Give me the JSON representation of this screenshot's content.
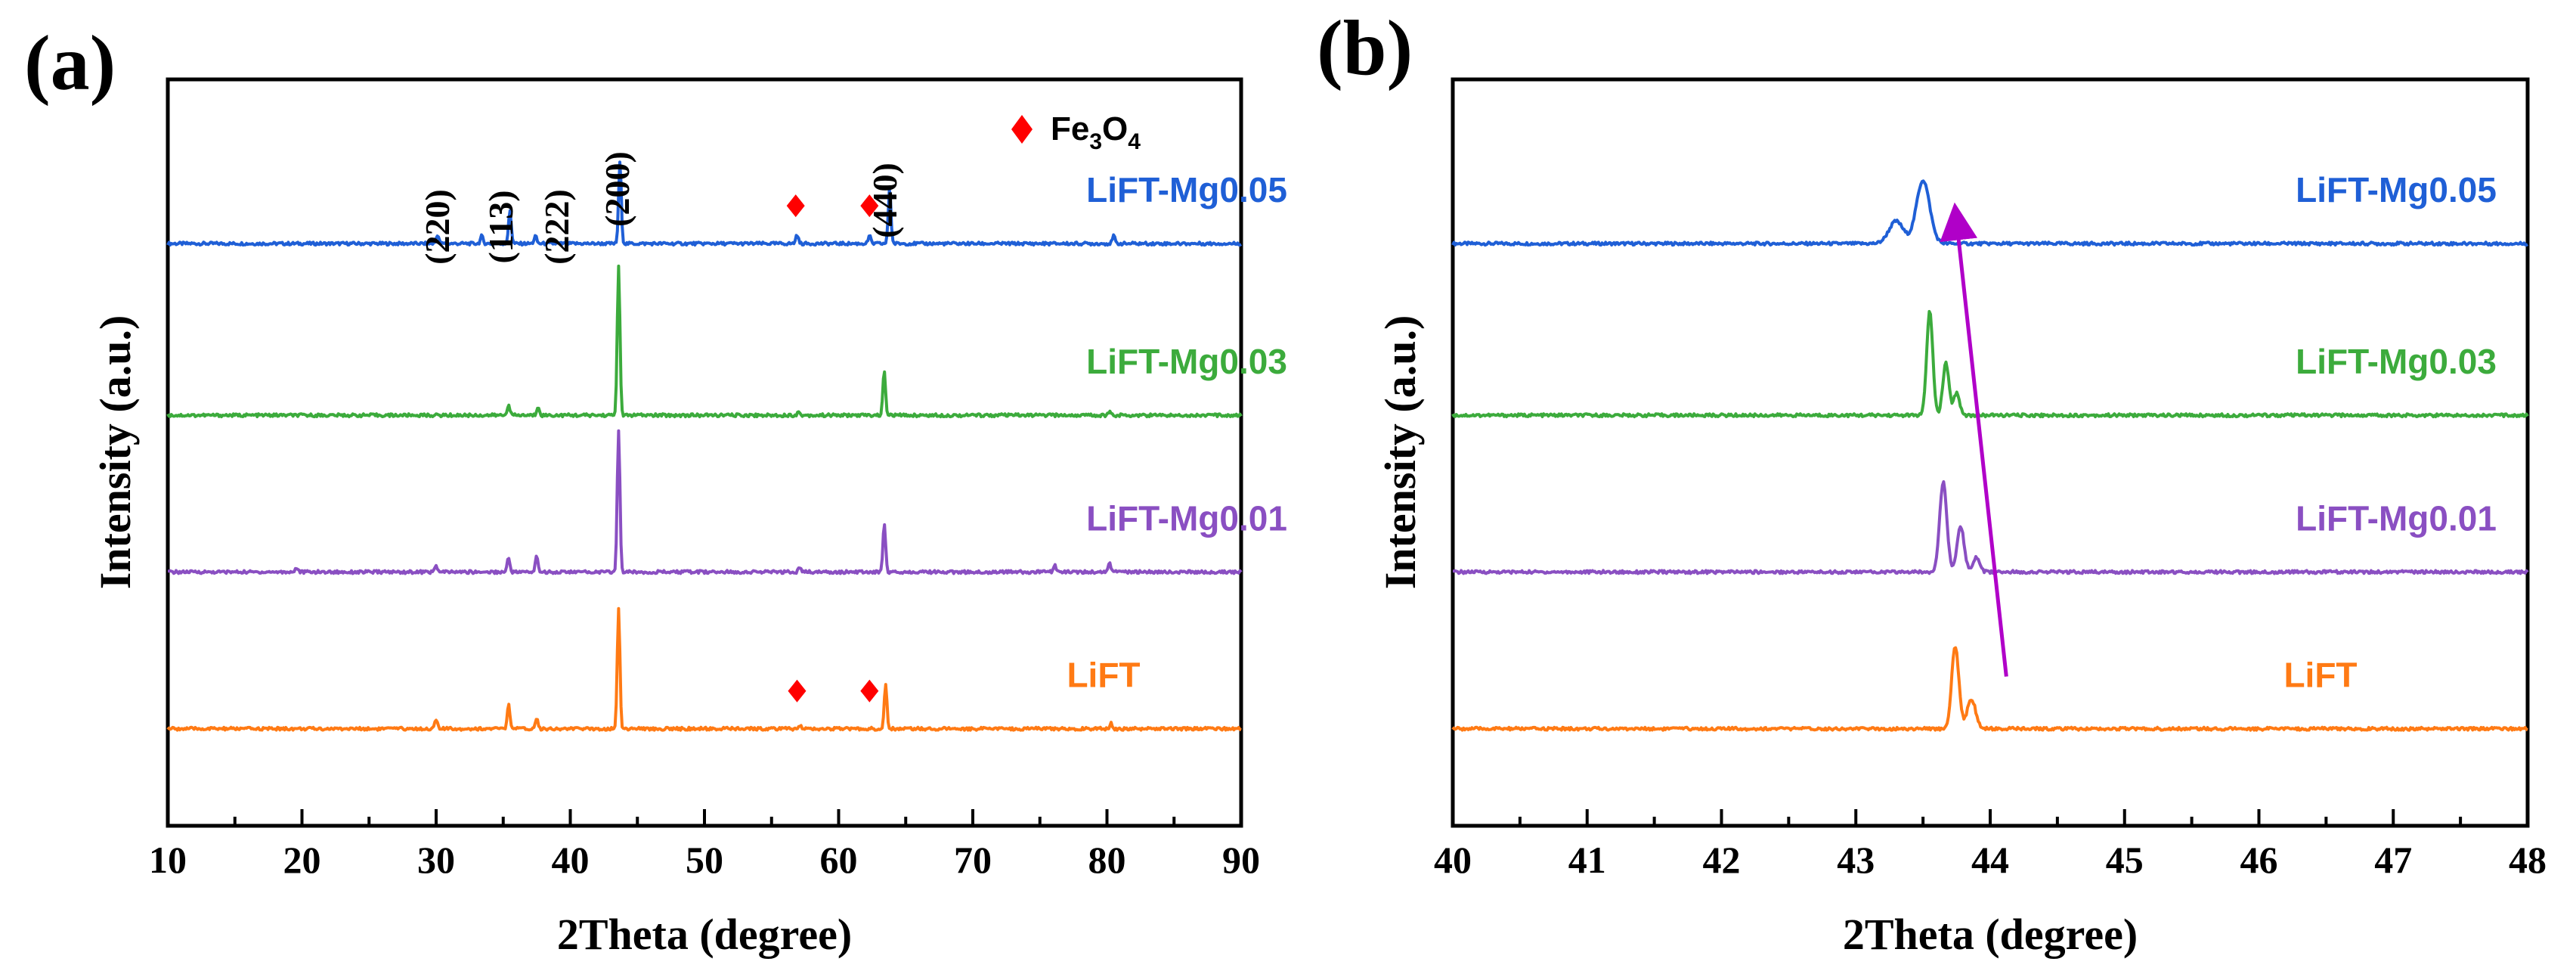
{
  "chart_data": [
    {
      "panel": "(a)",
      "type": "line",
      "xlabel": "2Theta (degree)",
      "ylabel": "Intensity (a.u.)",
      "xlim": [
        10,
        90
      ],
      "xticks": [
        10,
        20,
        30,
        40,
        50,
        60,
        70,
        80,
        90
      ],
      "grid": false,
      "series": [
        {
          "name": "LiFT-Mg0.05",
          "color": "#1f5fd6",
          "offset": 0.78,
          "peaks": [
            [
              30.1,
              0.012
            ],
            [
              33.4,
              0.01
            ],
            [
              35.5,
              0.045
            ],
            [
              37.4,
              0.01
            ],
            [
              43.7,
              0.11
            ],
            [
              56.9,
              0.012
            ],
            [
              62.3,
              0.01
            ],
            [
              63.8,
              0.075
            ],
            [
              80.5,
              0.01
            ]
          ]
        },
        {
          "name": "LiFT-Mg0.03",
          "color": "#3cab3c",
          "offset": 0.55,
          "peaks": [
            [
              35.4,
              0.015
            ],
            [
              37.6,
              0.012
            ],
            [
              43.6,
              0.2
            ],
            [
              57.0,
              0.004
            ],
            [
              63.4,
              0.06
            ],
            [
              80.2,
              0.005
            ]
          ]
        },
        {
          "name": "LiFT-Mg0.01",
          "color": "#8a4fc2",
          "offset": 0.34,
          "peaks": [
            [
              19.6,
              0.006
            ],
            [
              30.0,
              0.008
            ],
            [
              35.4,
              0.02
            ],
            [
              37.5,
              0.022
            ],
            [
              43.6,
              0.19
            ],
            [
              57.1,
              0.006
            ],
            [
              63.4,
              0.065
            ],
            [
              76.1,
              0.01
            ],
            [
              80.2,
              0.012
            ]
          ]
        },
        {
          "name": "LiFT",
          "color": "#ff7a14",
          "offset": 0.13,
          "peaks": [
            [
              30.0,
              0.012
            ],
            [
              35.4,
              0.032
            ],
            [
              37.5,
              0.015
            ],
            [
              43.6,
              0.16
            ],
            [
              57.1,
              0.005
            ],
            [
              63.5,
              0.06
            ],
            [
              80.3,
              0.008
            ]
          ]
        }
      ],
      "annotations": {
        "hkl": [
          "(220)",
          "(113)",
          "(222)",
          "(200)",
          "(440)"
        ],
        "fe3o4_markers": [
          {
            "series": "LiFT-Mg0.05",
            "x": [
              56.8,
              62.3
            ]
          },
          {
            "series": "LiFT",
            "x": [
              56.9,
              62.3
            ]
          }
        ]
      },
      "legend": {
        "symbol": "red-diamond",
        "text": "Fe",
        "sub1": "3",
        "text2": "O",
        "sub2": "4",
        "placement": "top-right"
      }
    },
    {
      "panel": "(b)",
      "type": "line",
      "xlabel": "2Theta (degree)",
      "ylabel": "Intensity (a.u.)",
      "xlim": [
        40,
        48
      ],
      "xticks": [
        40,
        41,
        42,
        43,
        44,
        45,
        46,
        47,
        48
      ],
      "grid": false,
      "series": [
        {
          "name": "LiFT-Mg0.05",
          "color": "#1f5fd6",
          "offset": 0.78,
          "peaks": [
            [
              43.5,
              0.085,
              0.11
            ],
            [
              43.3,
              0.03,
              0.12
            ]
          ]
        },
        {
          "name": "LiFT-Mg0.03",
          "color": "#3cab3c",
          "offset": 0.55,
          "peaks": [
            [
              43.55,
              0.14,
              0.05
            ],
            [
              43.67,
              0.07,
              0.05
            ],
            [
              43.75,
              0.03,
              0.05
            ]
          ]
        },
        {
          "name": "LiFT-Mg0.01",
          "color": "#8a4fc2",
          "offset": 0.34,
          "peaks": [
            [
              43.65,
              0.12,
              0.06
            ],
            [
              43.78,
              0.06,
              0.06
            ],
            [
              43.9,
              0.02,
              0.05
            ]
          ]
        },
        {
          "name": "LiFT",
          "color": "#ff7a14",
          "offset": 0.13,
          "peaks": [
            [
              43.74,
              0.11,
              0.06
            ],
            [
              43.86,
              0.04,
              0.07
            ]
          ]
        }
      ],
      "arrow": {
        "from": [
          44.12,
          0.2
        ],
        "to": [
          43.75,
          0.81
        ],
        "color": "#b000c8"
      }
    }
  ]
}
